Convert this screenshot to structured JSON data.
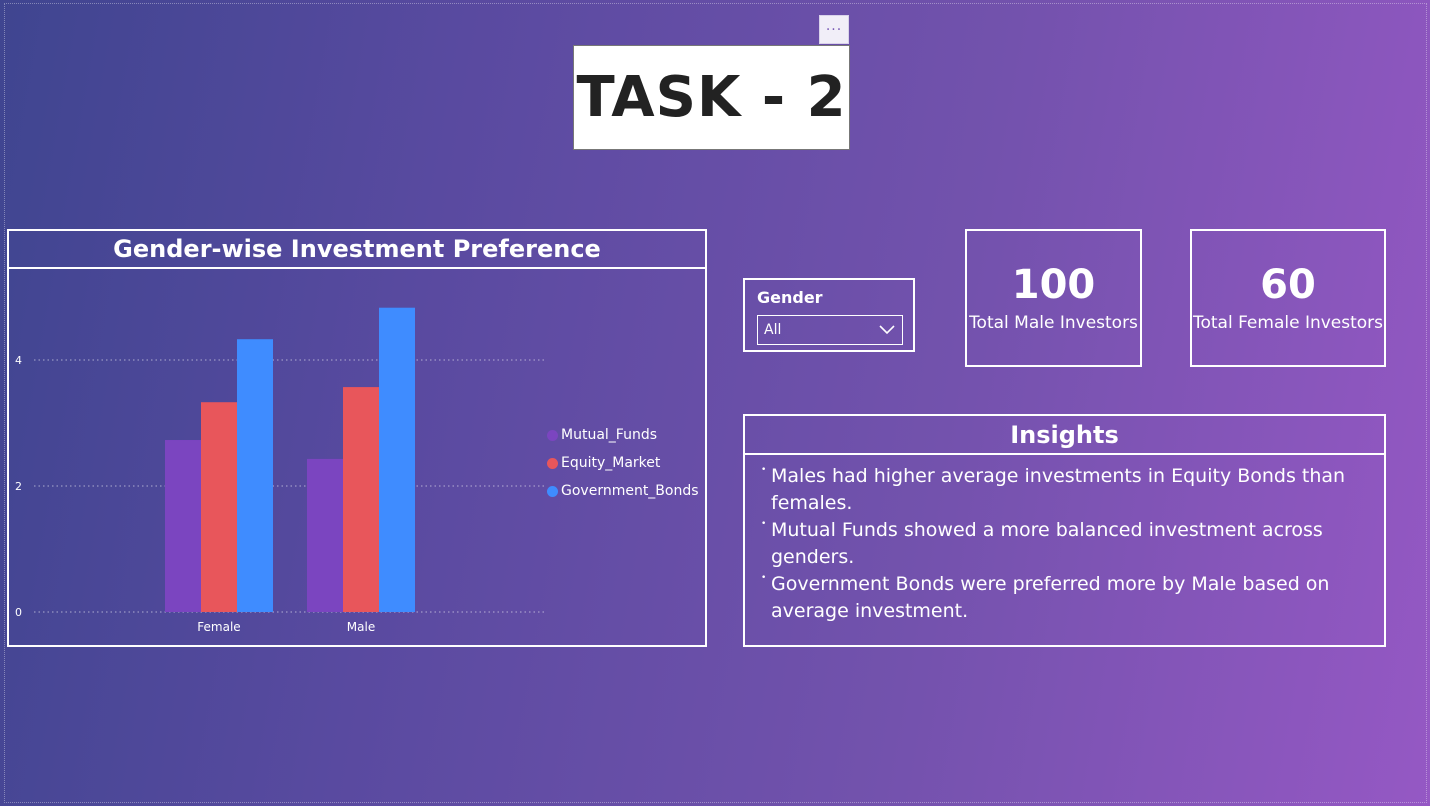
{
  "report": {
    "title": "TASK - 2",
    "more_icon": "more-options-icon",
    "more_glyph": "···"
  },
  "chart": {
    "title": "Gender-wise Investment Preference"
  },
  "chart_data": {
    "type": "bar",
    "title": "Gender-wise Investment Preference",
    "categories": [
      "Female",
      "Male"
    ],
    "series": [
      {
        "name": "Mutual_Funds",
        "values": [
          2.73,
          2.43
        ],
        "color": "#7b45c0"
      },
      {
        "name": "Equity_Market",
        "values": [
          3.33,
          3.57
        ],
        "color": "#e8565b"
      },
      {
        "name": "Government_Bonds",
        "values": [
          4.33,
          4.83
        ],
        "color": "#3f8cff"
      }
    ],
    "yticks": [
      0,
      2,
      4
    ],
    "ylim": [
      0,
      5.0
    ],
    "grid": true,
    "legend_position": "right"
  },
  "slicer": {
    "label": "Gender",
    "selected": "All",
    "chevron_icon": "chevron-down-icon"
  },
  "kpis": [
    {
      "value": "100",
      "label": "Total Male Investors"
    },
    {
      "value": "60",
      "label": "Total Female Investors"
    }
  ],
  "insights": {
    "title": "Insights",
    "items": [
      "Males had higher average investments in Equity Bonds than females.",
      "Mutual Funds showed a more balanced investment across genders.",
      "Government Bonds were preferred more by Male based on average investment."
    ]
  }
}
